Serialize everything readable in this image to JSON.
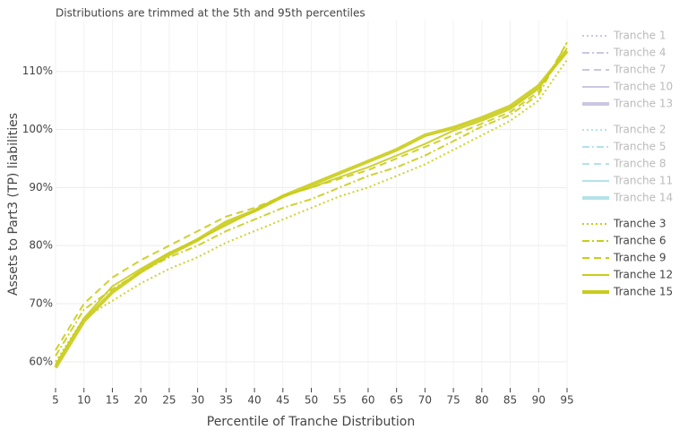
{
  "chart_data": {
    "type": "line",
    "title": "Distributions are trimmed at the 5th and 95th percentiles",
    "x_label": "Percentile of Tranche Distribution",
    "y_label": "Assets to Part3 (TP) liabilities",
    "x": [
      5,
      10,
      15,
      20,
      25,
      30,
      35,
      40,
      45,
      50,
      55,
      60,
      65,
      70,
      75,
      80,
      85,
      90,
      95
    ],
    "xlim": [
      5,
      95
    ],
    "xticks": [
      5,
      10,
      15,
      20,
      25,
      30,
      35,
      40,
      45,
      50,
      55,
      60,
      65,
      70,
      75,
      80,
      85,
      90,
      95
    ],
    "ylim": [
      55.5,
      118.9
    ],
    "yticks": [
      {
        "value": 60,
        "label": "60%"
      },
      {
        "value": 70,
        "label": "70%"
      },
      {
        "value": 80,
        "label": "80%"
      },
      {
        "value": 90,
        "label": "90%"
      },
      {
        "value": 100,
        "label": "100%"
      },
      {
        "value": 110,
        "label": "110%"
      }
    ],
    "grid": true,
    "legend": "right",
    "series": [
      {
        "name": "Tranche 1",
        "color": "#9b8fc4",
        "dash": "dot",
        "width": 2,
        "visible": false
      },
      {
        "name": "Tranche 4",
        "color": "#9b8fc4",
        "dash": "dashdot",
        "width": 2,
        "visible": false
      },
      {
        "name": "Tranche 7",
        "color": "#9b8fc4",
        "dash": "dash",
        "width": 2,
        "visible": false
      },
      {
        "name": "Tranche 10",
        "color": "#9b8fc4",
        "dash": "solid",
        "width": 2,
        "visible": false
      },
      {
        "name": "Tranche 13",
        "color": "#9b8fc4",
        "dash": "solid",
        "width": 4,
        "visible": false
      },
      {
        "name": "Tranche 2",
        "color": "#6cc6d6",
        "dash": "dot",
        "width": 2,
        "visible": false
      },
      {
        "name": "Tranche 5",
        "color": "#6cc6d6",
        "dash": "dashdot",
        "width": 2,
        "visible": false
      },
      {
        "name": "Tranche 8",
        "color": "#6cc6d6",
        "dash": "dash",
        "width": 2,
        "visible": false
      },
      {
        "name": "Tranche 11",
        "color": "#6cc6d6",
        "dash": "solid",
        "width": 2,
        "visible": false
      },
      {
        "name": "Tranche 14",
        "color": "#6cc6d6",
        "dash": "solid",
        "width": 4,
        "visible": false
      },
      {
        "name": "Tranche 3",
        "color": "#c9cc1a",
        "dash": "dot",
        "width": 2,
        "visible": true,
        "values": [
          60,
          67.5,
          70.5,
          73.5,
          76,
          78,
          80.5,
          82.5,
          84.5,
          86.5,
          88.5,
          90,
          92,
          94,
          96.5,
          99,
          101.5,
          105,
          112
        ]
      },
      {
        "name": "Tranche 6",
        "color": "#c9cc1a",
        "dash": "dashdot",
        "width": 2,
        "visible": true,
        "values": [
          61,
          69,
          72.5,
          75.5,
          78,
          80,
          82.5,
          84.5,
          86.5,
          88,
          90,
          92,
          93.5,
          95.5,
          98,
          100.5,
          102.5,
          106,
          115
        ]
      },
      {
        "name": "Tranche 9",
        "color": "#c9cc1a",
        "dash": "dash",
        "width": 2,
        "visible": true,
        "values": [
          62,
          70,
          74.5,
          77.5,
          80,
          82.5,
          85,
          86.5,
          88.5,
          90,
          91.5,
          93,
          95,
          97,
          99,
          101,
          103,
          106.5,
          115
        ]
      },
      {
        "name": "Tranche 12",
        "color": "#c9cc1a",
        "dash": "solid",
        "width": 2,
        "visible": true,
        "values": [
          59.5,
          67.5,
          73,
          76,
          78.8,
          81,
          83.5,
          86,
          88.5,
          90,
          91.8,
          93.5,
          95.5,
          97.5,
          99.8,
          101.5,
          103.5,
          107,
          114
        ]
      },
      {
        "name": "Tranche 15",
        "color": "#c9cc1a",
        "dash": "solid",
        "width": 4,
        "visible": true,
        "values": [
          59,
          67,
          72,
          75.5,
          78.5,
          81,
          84,
          86,
          88.5,
          90.5,
          92.5,
          94.5,
          96.5,
          99,
          100.3,
          102,
          104,
          107.5,
          113.5
        ]
      }
    ]
  }
}
